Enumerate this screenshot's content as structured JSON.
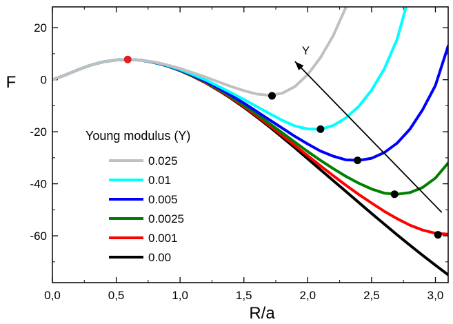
{
  "chart_data": {
    "type": "line",
    "xlabel": "R/a",
    "ylabel": "F",
    "xlim": [
      0,
      3.1
    ],
    "ylim": [
      -78,
      28
    ],
    "x_ticks": [
      0,
      0.5,
      1.0,
      1.5,
      2.0,
      2.5,
      3.0
    ],
    "x_tick_labels": [
      "0,0",
      "0,5",
      "1,0",
      "1,5",
      "2,0",
      "2,5",
      "3,0"
    ],
    "y_ticks": [
      20,
      0,
      -20,
      -40,
      -60
    ],
    "y_tick_labels": [
      "20",
      "0",
      "-20",
      "-40",
      "-60"
    ],
    "legend": {
      "title": "Young modulus (Y)",
      "position": "lower-left"
    },
    "annotation": {
      "text": "Y",
      "arrow_from": [
        3.05,
        -51
      ],
      "arrow_to": [
        1.9,
        7
      ]
    },
    "series": [
      {
        "name": "0.025",
        "color": "#c0c0c0",
        "x": [
          0,
          0.1,
          0.2,
          0.3,
          0.4,
          0.5,
          0.6,
          0.7,
          0.8,
          0.9,
          1.0,
          1.1,
          1.2,
          1.3,
          1.4,
          1.5,
          1.6,
          1.7,
          1.8,
          1.9,
          2.0,
          2.1,
          2.2,
          2.25,
          2.3
        ],
        "y": [
          0,
          1.8,
          3.8,
          5.6,
          6.9,
          7.6,
          7.8,
          7.5,
          6.8,
          5.7,
          4.3,
          2.7,
          1.0,
          -0.8,
          -2.6,
          -4.2,
          -5.5,
          -6.0,
          -5.2,
          -2.6,
          2.0,
          8.5,
          17.0,
          22.5,
          28.0
        ],
        "marker": {
          "x": 1.72,
          "y": -6.2,
          "color": "#000000"
        }
      },
      {
        "name": "0.01",
        "color": "#00ffff",
        "x": [
          0,
          0.1,
          0.2,
          0.3,
          0.4,
          0.5,
          0.6,
          0.7,
          0.8,
          0.9,
          1.0,
          1.1,
          1.2,
          1.3,
          1.4,
          1.5,
          1.6,
          1.7,
          1.8,
          1.9,
          2.0,
          2.1,
          2.2,
          2.3,
          2.4,
          2.5,
          2.6,
          2.7,
          2.77
        ],
        "y": [
          0,
          1.8,
          3.8,
          5.6,
          6.9,
          7.6,
          7.8,
          7.5,
          6.7,
          5.5,
          3.9,
          2.0,
          -0.1,
          -2.5,
          -5.0,
          -7.6,
          -10.3,
          -13.0,
          -15.6,
          -17.8,
          -18.9,
          -19.0,
          -17.6,
          -14.6,
          -10.2,
          -4.0,
          4.2,
          15.5,
          28.0
        ],
        "marker": {
          "x": 2.1,
          "y": -19.0,
          "color": "#000000"
        }
      },
      {
        "name": "0.005",
        "color": "#0000ff",
        "x": [
          0,
          0.1,
          0.2,
          0.3,
          0.4,
          0.5,
          0.6,
          0.7,
          0.8,
          0.9,
          1.0,
          1.1,
          1.2,
          1.3,
          1.4,
          1.5,
          1.6,
          1.7,
          1.8,
          1.9,
          2.0,
          2.1,
          2.2,
          2.3,
          2.4,
          2.5,
          2.6,
          2.7,
          2.8,
          2.9,
          3.0,
          3.1
        ],
        "y": [
          0,
          1.8,
          3.8,
          5.6,
          6.9,
          7.6,
          7.8,
          7.5,
          6.6,
          5.4,
          3.7,
          1.7,
          -0.6,
          -3.2,
          -6.0,
          -9.0,
          -12.2,
          -15.4,
          -18.6,
          -21.8,
          -24.7,
          -27.4,
          -29.4,
          -30.8,
          -31.0,
          -30.2,
          -28.0,
          -24.4,
          -19.0,
          -11.5,
          -2.2,
          13.0
        ],
        "marker": {
          "x": 2.39,
          "y": -31.0,
          "color": "#000000"
        }
      },
      {
        "name": "0.0025",
        "color": "#008000",
        "x": [
          0,
          0.1,
          0.2,
          0.3,
          0.4,
          0.5,
          0.6,
          0.7,
          0.8,
          0.9,
          1.0,
          1.1,
          1.2,
          1.3,
          1.4,
          1.5,
          1.6,
          1.7,
          1.8,
          1.9,
          2.0,
          2.1,
          2.2,
          2.3,
          2.4,
          2.5,
          2.6,
          2.7,
          2.8,
          2.9,
          3.0,
          3.1
        ],
        "y": [
          0,
          1.8,
          3.8,
          5.6,
          6.9,
          7.6,
          7.8,
          7.5,
          6.6,
          5.3,
          3.6,
          1.5,
          -0.9,
          -3.6,
          -6.6,
          -9.8,
          -13.2,
          -16.8,
          -20.4,
          -24.0,
          -27.6,
          -31.0,
          -34.2,
          -37.2,
          -39.8,
          -42.0,
          -43.6,
          -44.0,
          -43.4,
          -41.4,
          -37.8,
          -32.0
        ],
        "marker": {
          "x": 2.68,
          "y": -44.0,
          "color": "#000000"
        }
      },
      {
        "name": "0.001",
        "color": "#ff0000",
        "x": [
          0,
          0.1,
          0.2,
          0.3,
          0.4,
          0.5,
          0.6,
          0.7,
          0.8,
          0.9,
          1.0,
          1.1,
          1.2,
          1.3,
          1.4,
          1.5,
          1.6,
          1.7,
          1.8,
          1.9,
          2.0,
          2.1,
          2.2,
          2.3,
          2.4,
          2.5,
          2.6,
          2.7,
          2.8,
          2.9,
          3.0,
          3.1
        ],
        "y": [
          0,
          1.8,
          3.8,
          5.6,
          6.9,
          7.6,
          7.8,
          7.5,
          6.6,
          5.3,
          3.5,
          1.4,
          -1.1,
          -3.9,
          -7.0,
          -10.3,
          -13.9,
          -17.6,
          -21.4,
          -25.3,
          -29.2,
          -33.1,
          -36.9,
          -40.6,
          -44.1,
          -47.4,
          -50.6,
          -53.4,
          -55.9,
          -57.8,
          -59.0,
          -59.4
        ],
        "marker": {
          "x": 3.02,
          "y": -59.6,
          "color": "#000000"
        }
      },
      {
        "name": "0.00",
        "color": "#000000",
        "x": [
          0,
          0.1,
          0.2,
          0.3,
          0.4,
          0.5,
          0.6,
          0.7,
          0.8,
          0.9,
          1.0,
          1.1,
          1.2,
          1.3,
          1.4,
          1.5,
          1.6,
          1.7,
          1.8,
          1.9,
          2.0,
          2.1,
          2.2,
          2.3,
          2.4,
          2.5,
          2.6,
          2.7,
          2.8,
          2.9,
          3.0,
          3.1
        ],
        "y": [
          0,
          1.8,
          3.8,
          5.6,
          6.9,
          7.6,
          7.8,
          7.5,
          6.6,
          5.3,
          3.5,
          1.3,
          -1.2,
          -4.1,
          -7.2,
          -10.6,
          -14.3,
          -18.1,
          -22.1,
          -26.2,
          -30.4,
          -34.6,
          -38.8,
          -43.0,
          -47.2,
          -51.4,
          -55.5,
          -59.6,
          -63.6,
          -67.5,
          -71.3,
          -75.0
        ]
      }
    ],
    "extra_markers": [
      {
        "x": 0.59,
        "y": 7.8,
        "color": "#e02020"
      }
    ]
  }
}
